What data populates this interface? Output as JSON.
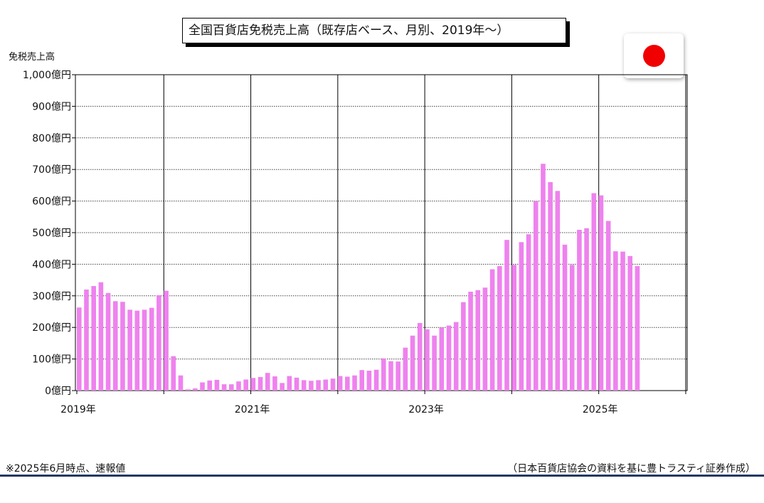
{
  "chart_data": {
    "type": "bar",
    "title": "全国百貨店免税売上高（既存店ベース、月別、2019年～）",
    "ylabel": "免税売上高",
    "xlabel": "",
    "ylim": [
      0,
      1000
    ],
    "yticks": [
      0,
      100,
      200,
      300,
      400,
      500,
      600,
      700,
      800,
      900,
      1000
    ],
    "ytick_labels": [
      "0億円",
      "100億円",
      "200億円",
      "300億円",
      "400億円",
      "500億円",
      "600億円",
      "700億円",
      "800億円",
      "900億円",
      "1,000億円"
    ],
    "xtick_labels": [
      "2019年",
      "2021年",
      "2023年",
      "2025年"
    ],
    "xtick_years": [
      2019,
      2021,
      2023,
      2025
    ],
    "grid": true,
    "bar_color": "#ee82ee",
    "start": "2019-01",
    "values": [
      263,
      320,
      331,
      343,
      309,
      283,
      281,
      256,
      253,
      256,
      262,
      302,
      316,
      109,
      48,
      4,
      7,
      26,
      32,
      34,
      20,
      20,
      29,
      35,
      40,
      43,
      56,
      45,
      24,
      46,
      41,
      33,
      31,
      33,
      35,
      38,
      46,
      44,
      48,
      65,
      63,
      66,
      102,
      93,
      92,
      136,
      174,
      214,
      194,
      174,
      199,
      206,
      217,
      280,
      313,
      318,
      326,
      384,
      394,
      477,
      398,
      470,
      495,
      600,
      718,
      660,
      632,
      462,
      398,
      509,
      514,
      625,
      618,
      537,
      441,
      440,
      426,
      394
    ]
  },
  "footnote": "※2025年6月時点、速報値",
  "source": "（日本百貨店協会の資料を基に豊トラスティ証券作成）",
  "flag": {
    "icon": "japan-flag-icon",
    "color": "#f00000"
  }
}
